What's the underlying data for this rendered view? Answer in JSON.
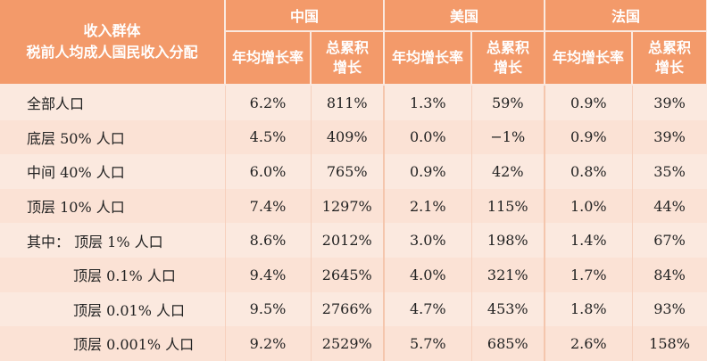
{
  "header": {
    "corner_line1": "收入群体",
    "corner_line2": "税前人均成人国民收入分配",
    "countries": [
      "中国",
      "美国",
      "法国"
    ],
    "col_annual": "年均增长率",
    "col_total_line1": "总累积",
    "col_total_line2": "增长"
  },
  "rows": [
    {
      "label": "全部人口",
      "values": [
        "6.2%",
        "811%",
        "1.3%",
        "59%",
        "0.9%",
        "39%"
      ]
    },
    {
      "label": "底层 50% 人口",
      "values": [
        "4.5%",
        "409%",
        "0.0%",
        "−1%",
        "0.9%",
        "39%"
      ]
    },
    {
      "label": "中间 40% 人口",
      "values": [
        "6.0%",
        "765%",
        "0.9%",
        "42%",
        "0.8%",
        "35%"
      ]
    },
    {
      "label": "顶层 10% 人口",
      "values": [
        "7.4%",
        "1297%",
        "2.1%",
        "115%",
        "1.0%",
        "44%"
      ]
    },
    {
      "label": "其中： 顶层 1% 人口",
      "values": [
        "8.6%",
        "2012%",
        "3.0%",
        "198%",
        "1.4%",
        "67%"
      ]
    },
    {
      "label": "顶层 0.1% 人口",
      "values": [
        "9.4%",
        "2645%",
        "4.0%",
        "321%",
        "1.7%",
        "84%"
      ]
    },
    {
      "label": "顶层 0.01% 人口",
      "values": [
        "9.5%",
        "2766%",
        "4.7%",
        "453%",
        "1.8%",
        "93%"
      ]
    },
    {
      "label": "顶层 0.001% 人口",
      "values": [
        "9.2%",
        "2529%",
        "5.7%",
        "685%",
        "2.6%",
        "158%"
      ]
    }
  ]
}
